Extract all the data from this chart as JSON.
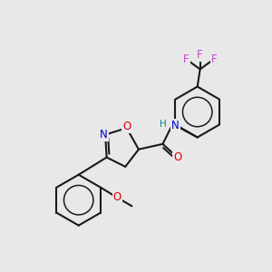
{
  "background_color": "#e8e8e8",
  "figure_size": [
    3.0,
    3.0
  ],
  "dpi": 100,
  "atom_colors": {
    "C": "#1a1a1a",
    "N": "#0000cc",
    "O": "#dd0000",
    "F": "#cc44cc",
    "H": "#008888"
  },
  "bond_color": "#1a1a1a",
  "bond_width": 1.5,
  "font_size_atoms": 8.5,
  "font_size_small": 7.5
}
